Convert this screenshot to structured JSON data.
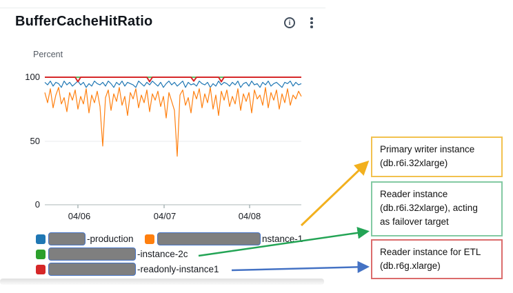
{
  "header": {
    "title": "BufferCacheHitRatio",
    "info_icon_glyph": "i"
  },
  "chart_data": {
    "type": "line",
    "title": "BufferCacheHitRatio",
    "ylabel": "Percent",
    "ylim": [
      0,
      100
    ],
    "y_ticks": [
      "100",
      "50",
      "0"
    ],
    "x_ticks": [
      "04/06",
      "04/07",
      "04/08"
    ],
    "grid": true,
    "legend_position": "bottom",
    "series": [
      {
        "label": "-instance-2c",
        "color": "#2ca02c",
        "flat": 100
      },
      {
        "label": "-production",
        "color": "#1f77b4",
        "values": [
          96,
          94,
          97,
          93,
          96,
          95,
          92,
          97,
          94,
          96,
          93,
          95,
          97,
          94,
          96,
          92,
          95,
          93,
          97,
          95,
          94,
          96,
          93,
          97,
          95,
          92,
          96,
          94,
          97,
          93,
          96,
          95,
          94,
          92,
          97,
          95,
          93,
          96,
          94,
          97,
          95,
          93,
          96,
          92,
          95,
          97,
          94,
          96,
          93,
          95,
          97,
          92,
          96,
          94,
          95,
          93,
          97,
          95,
          94,
          96,
          92,
          95,
          93,
          97,
          94,
          96,
          95,
          93,
          96,
          94,
          97,
          92,
          95,
          96,
          93,
          97,
          94,
          95,
          92,
          96,
          94,
          97,
          93,
          95,
          96,
          94,
          92,
          96,
          95,
          97,
          93,
          96,
          94,
          95
        ]
      },
      {
        "label": "nstance-1",
        "color": "#ff7f0e",
        "values": [
          88,
          80,
          91,
          76,
          86,
          92,
          79,
          84,
          73,
          88,
          82,
          90,
          75,
          85,
          79,
          91,
          72,
          86,
          80,
          89,
          77,
          46,
          84,
          90,
          74,
          87,
          81,
          92,
          78,
          85,
          70,
          88,
          83,
          91,
          76,
          86,
          80,
          90,
          73,
          87,
          82,
          89,
          77,
          85,
          68,
          88,
          81,
          74,
          38,
          86,
          90,
          78,
          84,
          72,
          89,
          83,
          91,
          76,
          87,
          80,
          92,
          75,
          86,
          70,
          89,
          82,
          90,
          77,
          85,
          79,
          91,
          74,
          87,
          81,
          88,
          72,
          90,
          83,
          86,
          78,
          92,
          76,
          88,
          82,
          90,
          75,
          87,
          80,
          91,
          78,
          86,
          83,
          89,
          85
        ]
      },
      {
        "label": "-readonly-instance1",
        "color": "#d62728",
        "values": [
          100,
          100,
          100,
          100,
          100,
          100,
          100,
          100,
          100,
          100,
          100,
          100,
          96.5,
          100,
          100,
          100,
          100,
          100,
          100,
          100,
          100,
          100,
          100,
          100,
          100,
          100,
          100,
          100,
          100,
          100,
          100,
          100,
          100,
          100,
          100,
          100,
          100,
          100,
          96.5,
          100,
          100,
          100,
          100,
          100,
          100,
          100,
          100,
          100,
          100,
          100,
          100,
          100,
          100,
          100,
          97,
          100,
          100,
          100,
          100,
          100,
          100,
          100,
          100,
          100,
          96.5,
          100,
          100,
          100,
          100,
          100,
          100,
          100,
          100,
          100,
          100,
          100,
          100,
          100,
          100,
          100,
          100,
          100,
          100,
          100,
          100,
          100,
          100,
          100,
          100,
          100,
          100,
          100,
          100,
          100
        ]
      }
    ]
  },
  "legend": {
    "items": [
      {
        "color": "#1f77b4",
        "label_suffix": "-production"
      },
      {
        "color": "#ff7f0e",
        "label_suffix": "nstance-1"
      },
      {
        "color": "#2ca02c",
        "label_suffix": "-instance-2c"
      },
      {
        "color": "#d62728",
        "label_suffix": "-readonly-instance1"
      }
    ]
  },
  "annotations": [
    {
      "text": "Primary writer instance\n(db.r6i.32xlarge)",
      "border_color": "#f2c14e",
      "arrow_color": "#f2b01e"
    },
    {
      "text": "Reader instance\n(db.r6i.32xlarge), acting\nas failover target",
      "border_color": "#82c9a2",
      "arrow_color": "#23a455"
    },
    {
      "text": "Reader instance for ETL\n(db.r6g.xlarge)",
      "border_color": "#db6b6b",
      "arrow_color": "#4472c4"
    }
  ]
}
